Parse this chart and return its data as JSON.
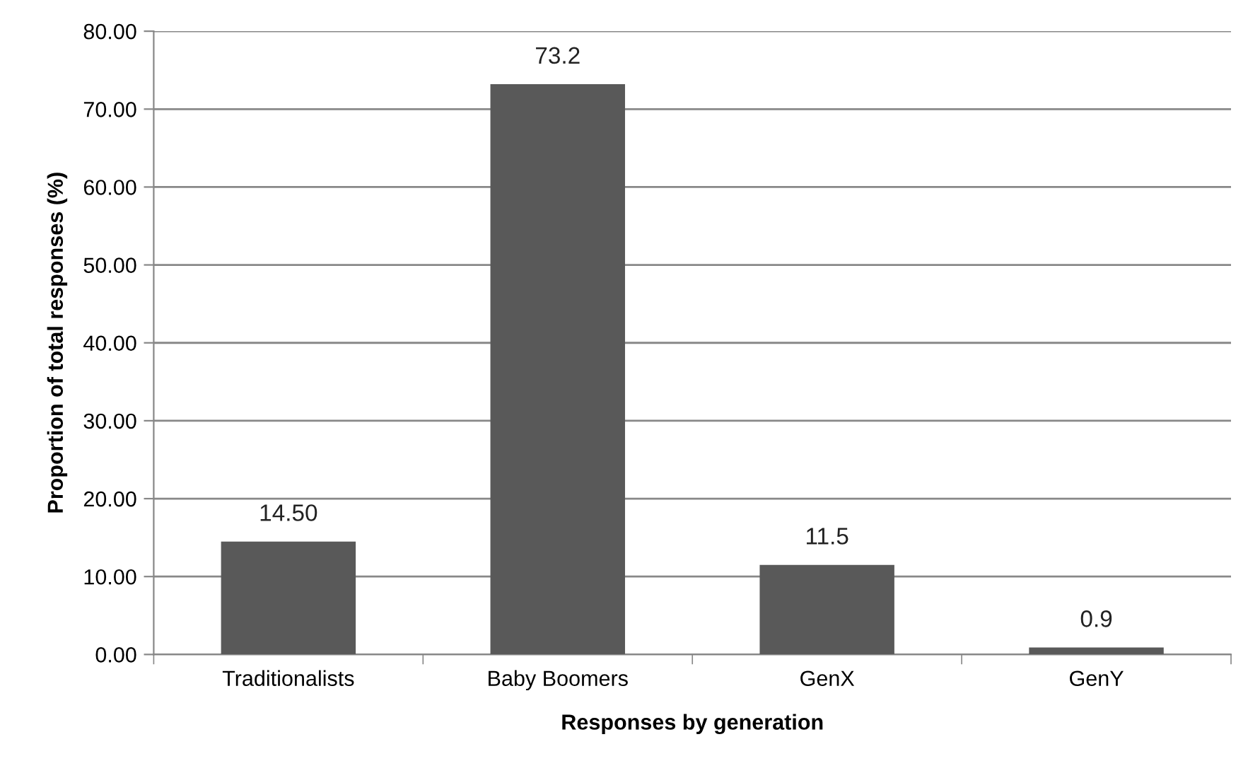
{
  "chart_data": {
    "type": "bar",
    "xlabel": "Responses by generation",
    "ylabel": "Proportion of total responses (%)",
    "categories": [
      "Traditionalists",
      "Baby Boomers",
      "GenX",
      "GenY"
    ],
    "values": [
      14.5,
      73.2,
      11.5,
      0.9
    ],
    "value_labels": [
      "14.50",
      "73.2",
      "11.5",
      "0.9"
    ],
    "color": "#595959",
    "ylim": [
      0,
      80
    ],
    "yticks": [
      {
        "value": 0,
        "label": "0.00"
      },
      {
        "value": 10,
        "label": "10.00"
      },
      {
        "value": 20,
        "label": "20.00"
      },
      {
        "value": 30,
        "label": "30.00"
      },
      {
        "value": 40,
        "label": "40.00"
      },
      {
        "value": 50,
        "label": "50.00"
      },
      {
        "value": 60,
        "label": "60.00"
      },
      {
        "value": 70,
        "label": "70.00"
      },
      {
        "value": 80,
        "label": "80.00"
      }
    ],
    "grid": "y",
    "legend": false
  }
}
